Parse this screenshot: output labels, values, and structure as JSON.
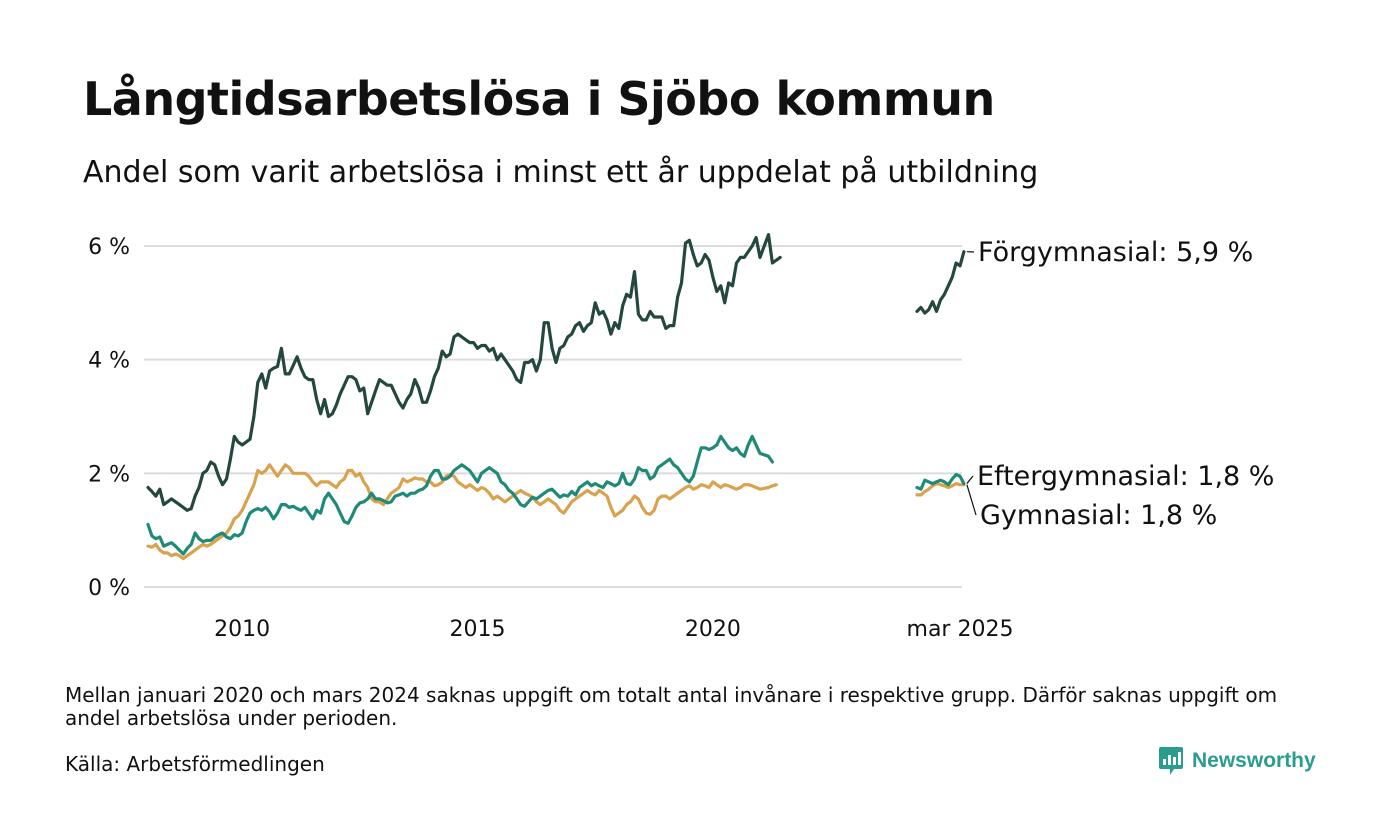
{
  "title": "Långtidsarbetslösa i Sjöbo kommun",
  "subtitle": "Andel som varit arbetslösa i minst ett år uppdelat på utbildning",
  "footnote": "Mellan januari 2020 och mars 2024 saknas uppgift om totalt antal invånare i respektive grupp. Därför saknas uppgift om andel arbetslösa under perioden.",
  "source": "Källa: Arbetsförmedlingen",
  "brand": {
    "name": "Newsworthy",
    "color": "#2a9d8f",
    "icon": "bar-chart-speech-bubble-icon"
  },
  "chart_data": {
    "type": "line",
    "title": "Långtidsarbetslösa i Sjöbo kommun",
    "subtitle": "Andel som varit arbetslösa i minst ett år uppdelat på utbildning",
    "ylim": [
      0,
      6
    ],
    "y_ticks": [
      0,
      2,
      4,
      6
    ],
    "y_tick_labels": [
      "0 %",
      "2 %",
      "4 %",
      "6 %"
    ],
    "x_ticks": [
      {
        "label": "2010",
        "date": "2010-01"
      },
      {
        "label": "2015",
        "date": "2015-01"
      },
      {
        "label": "2020",
        "date": "2020-01"
      },
      {
        "label": "mar 2025",
        "date": "2025-03"
      }
    ],
    "x_axis_break": {
      "from": "2020-12",
      "to": "2024-04"
    },
    "grid": "horizontal",
    "legend": "direct labels at right end of lines",
    "series": [
      {
        "name": "Förgymnasial",
        "end_label": "Förgymnasial: 5,9 %",
        "color": "#24483f",
        "segments": [
          {
            "start": "2008-01",
            "values": [
              1.75,
              1.68,
              1.6,
              1.72,
              1.45,
              1.5,
              1.55,
              1.5,
              1.45,
              1.4,
              1.35,
              1.38,
              1.6,
              1.75,
              2.0,
              2.05,
              2.2,
              2.15,
              1.95,
              1.8,
              1.9,
              2.25,
              2.65,
              2.55,
              2.5,
              2.55,
              2.6,
              3.0,
              3.6,
              3.75,
              3.5,
              3.8,
              3.85,
              3.88,
              4.2,
              3.75,
              3.75,
              3.9,
              4.05,
              3.85,
              3.7,
              3.65,
              3.65,
              3.3,
              3.05,
              3.3,
              3.0,
              3.05,
              3.2,
              3.4,
              3.55,
              3.7,
              3.7,
              3.65,
              3.45,
              3.5,
              3.05,
              3.25,
              3.45,
              3.65,
              3.6,
              3.55,
              3.55,
              3.4,
              3.25,
              3.15,
              3.3,
              3.4,
              3.65,
              3.5,
              3.25,
              3.25,
              3.45,
              3.7,
              3.85,
              4.15,
              4.05,
              4.1,
              4.4,
              4.45,
              4.4,
              4.35,
              4.3,
              4.3,
              4.2,
              4.25,
              4.25,
              4.15,
              4.2,
              4.0,
              4.1,
              4.0,
              3.9,
              3.8,
              3.65,
              3.6,
              3.95,
              3.95,
              4.0,
              3.8,
              4.0,
              4.65,
              4.65,
              4.2,
              3.95,
              4.2,
              4.25,
              4.4,
              4.45,
              4.6,
              4.65,
              4.5,
              4.6,
              4.65,
              5.0,
              4.8,
              4.85,
              4.7,
              4.45,
              4.65,
              4.55,
              4.95,
              5.15,
              5.1,
              5.55,
              4.8,
              4.7,
              4.7,
              4.85,
              4.75,
              4.75,
              4.75,
              4.55,
              4.6,
              4.6,
              5.1,
              5.35,
              6.05,
              6.1,
              5.85,
              5.65,
              5.7,
              5.85,
              5.75,
              5.45,
              5.2,
              5.3,
              5.0,
              5.35,
              5.3,
              5.7,
              5.8,
              5.8,
              5.9,
              6.0,
              6.15,
              5.8,
              6.2,
              5.7,
              5.75,
              5.8
            ]
          },
          {
            "start": "2024-04",
            "values": [
              4.85,
              4.92,
              4.82,
              4.88,
              5.02,
              4.85,
              5.05,
              5.15,
              5.3,
              5.45,
              5.7,
              5.65,
              5.9
            ]
          }
        ]
      },
      {
        "name": "Eftergymnasial",
        "end_label": "Eftergymnasial: 1,8 %",
        "color": "#1f8a78",
        "segments": [
          {
            "start": "2008-01",
            "values": [
              1.1,
              0.9,
              0.85,
              0.88,
              0.72,
              0.75,
              0.78,
              0.72,
              0.65,
              0.58,
              0.68,
              0.75,
              0.95,
              0.85,
              0.8,
              0.82,
              0.82,
              0.88,
              0.92,
              0.95,
              0.88,
              0.85,
              0.92,
              0.9,
              0.95,
              1.15,
              1.3,
              1.35,
              1.38,
              1.35,
              1.4,
              1.32,
              1.2,
              1.3,
              1.45,
              1.45,
              1.4,
              1.42,
              1.38,
              1.35,
              1.4,
              1.3,
              1.2,
              1.35,
              1.3,
              1.55,
              1.65,
              1.55,
              1.45,
              1.3,
              1.15,
              1.12,
              1.25,
              1.4,
              1.48,
              1.5,
              1.55,
              1.65,
              1.55,
              1.55,
              1.52,
              1.48,
              1.5,
              1.6,
              1.62,
              1.65,
              1.6,
              1.65,
              1.65,
              1.7,
              1.72,
              1.78,
              1.95,
              2.05,
              2.05,
              1.9,
              1.9,
              1.95,
              2.05,
              2.1,
              2.15,
              2.1,
              2.05,
              1.95,
              1.85,
              2.0,
              2.05,
              2.1,
              2.05,
              2.0,
              1.85,
              1.8,
              1.7,
              1.65,
              1.55,
              1.45,
              1.42,
              1.5,
              1.58,
              1.55,
              1.6,
              1.65,
              1.7,
              1.72,
              1.65,
              1.58,
              1.62,
              1.6,
              1.68,
              1.62,
              1.75,
              1.8,
              1.85,
              1.78,
              1.82,
              1.78,
              1.75,
              1.85,
              1.82,
              1.78,
              1.82,
              2.0,
              1.82,
              1.8,
              1.9,
              2.1,
              2.05,
              2.05,
              1.9,
              1.95,
              2.1,
              2.15,
              2.2,
              2.25,
              2.15,
              2.1,
              2.0,
              1.9,
              1.85,
              1.95,
              2.2,
              2.45,
              2.45,
              2.42,
              2.45,
              2.5,
              2.65,
              2.55,
              2.45,
              2.4,
              2.45,
              2.35,
              2.3,
              2.5,
              2.65,
              2.5,
              2.35,
              2.3,
              2.2
            ]
          },
          {
            "start": "2024-04",
            "values": [
              1.75,
              1.72,
              1.88,
              1.85,
              1.82,
              1.85,
              1.88,
              1.85,
              1.8,
              1.9,
              1.98,
              1.95,
              1.82
            ]
          }
        ]
      },
      {
        "name": "Gymnasial",
        "end_label": "Gymnasial: 1,8 %",
        "color": "#d9a24d",
        "segments": [
          {
            "start": "2008-01",
            "values": [
              0.72,
              0.7,
              0.75,
              0.65,
              0.6,
              0.6,
              0.55,
              0.58,
              0.55,
              0.5,
              0.55,
              0.6,
              0.65,
              0.7,
              0.75,
              0.72,
              0.75,
              0.8,
              0.85,
              0.9,
              0.95,
              1.05,
              1.2,
              1.25,
              1.35,
              1.5,
              1.65,
              1.8,
              2.05,
              2.0,
              2.05,
              2.15,
              2.05,
              1.95,
              2.05,
              2.15,
              2.1,
              2.0,
              2.0,
              2.0,
              2.0,
              1.95,
              1.85,
              1.78,
              1.85,
              1.85,
              1.85,
              1.8,
              1.75,
              1.85,
              1.9,
              2.05,
              2.05,
              1.95,
              2.0,
              1.85,
              1.75,
              1.55,
              1.5,
              1.5,
              1.45,
              1.55,
              1.65,
              1.7,
              1.75,
              1.9,
              1.85,
              1.88,
              1.92,
              1.9,
              1.9,
              1.85,
              1.85,
              1.78,
              1.8,
              1.85,
              1.95,
              1.98,
              1.95,
              1.85,
              1.8,
              1.75,
              1.8,
              1.75,
              1.7,
              1.75,
              1.72,
              1.65,
              1.55,
              1.6,
              1.55,
              1.5,
              1.55,
              1.6,
              1.65,
              1.7,
              1.65,
              1.62,
              1.58,
              1.5,
              1.45,
              1.5,
              1.55,
              1.5,
              1.45,
              1.35,
              1.3,
              1.4,
              1.5,
              1.55,
              1.6,
              1.65,
              1.7,
              1.65,
              1.62,
              1.7,
              1.65,
              1.6,
              1.4,
              1.25,
              1.3,
              1.35,
              1.45,
              1.5,
              1.6,
              1.55,
              1.4,
              1.3,
              1.28,
              1.35,
              1.55,
              1.6,
              1.6,
              1.55,
              1.6,
              1.65,
              1.7,
              1.75,
              1.78,
              1.72,
              1.75,
              1.8,
              1.78,
              1.75,
              1.85,
              1.8,
              1.75,
              1.8,
              1.78,
              1.75,
              1.72,
              1.75,
              1.8,
              1.8,
              1.78,
              1.75,
              1.72,
              1.75,
              1.78,
              1.8
            ]
          },
          {
            "start": "2024-04",
            "values": [
              1.62,
              1.62,
              1.68,
              1.72,
              1.78,
              1.82,
              1.8,
              1.78,
              1.75,
              1.78,
              1.82,
              1.8,
              1.8
            ]
          }
        ]
      }
    ]
  }
}
